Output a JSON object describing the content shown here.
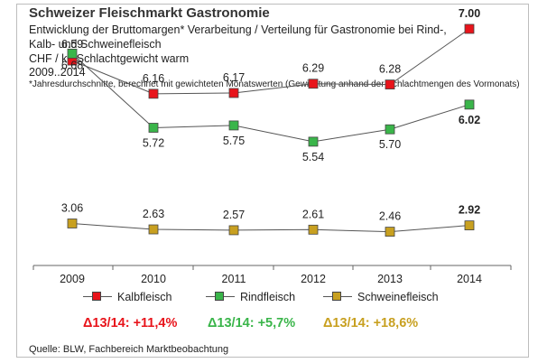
{
  "header": {
    "title": "Schweizer Fleischmarkt Gastronomie",
    "subtitle_line1": "Entwicklung der Bruttomargen* Verarbeitung / Verteilung  für Gastronomie bei Rind-,",
    "subtitle_line2": "Kalb- und Schweinefleisch",
    "unit": "CHF / kg Schlachtgewicht warm",
    "period": "2009..2014",
    "footnote": "*Jahresdurchschnitte, berechnet mit gewichteten Monatswerten (Gewichtung anhand der Schlachtmengen des Vormonats)"
  },
  "chart_data": {
    "type": "line",
    "x": [
      "2009",
      "2010",
      "2011",
      "2012",
      "2013",
      "2014"
    ],
    "series": [
      {
        "name": "Kalbfleisch",
        "color": "#e8141b",
        "values": [
          6.59,
          6.16,
          6.17,
          6.29,
          6.28,
          7.0
        ],
        "labels": [
          "6.59",
          "6.16",
          "6.17",
          "6.29",
          "6.28",
          "7.00"
        ]
      },
      {
        "name": "Rindfleisch",
        "color": "#3ab54a",
        "values": [
          6.68,
          5.72,
          5.75,
          5.54,
          5.7,
          6.02
        ],
        "labels": [
          "6.68",
          "5.72",
          "5.75",
          "5.54",
          "5.70",
          "6.02"
        ]
      },
      {
        "name": "Schweinefleisch",
        "color": "#c8a020",
        "values": [
          3.06,
          2.63,
          2.57,
          2.61,
          2.46,
          2.92
        ],
        "labels": [
          "3.06",
          "2.63",
          "2.57",
          "2.61",
          "2.46",
          "2.92"
        ]
      }
    ],
    "y_axis_shown": false,
    "grid": false,
    "legend_position": "bottom"
  },
  "legend": [
    "Kalbfleisch",
    "Rindfleisch",
    "Schweinefleisch"
  ],
  "deltas": [
    {
      "text": "Δ13/14: +11,4%",
      "color": "#e8141b"
    },
    {
      "text": "Δ13/14: +5,7%",
      "color": "#3ab54a"
    },
    {
      "text": "Δ13/14: +18,6%",
      "color": "#c8a020"
    }
  ],
  "source": "Quelle: BLW, Fachbereich Marktbeobachtung"
}
